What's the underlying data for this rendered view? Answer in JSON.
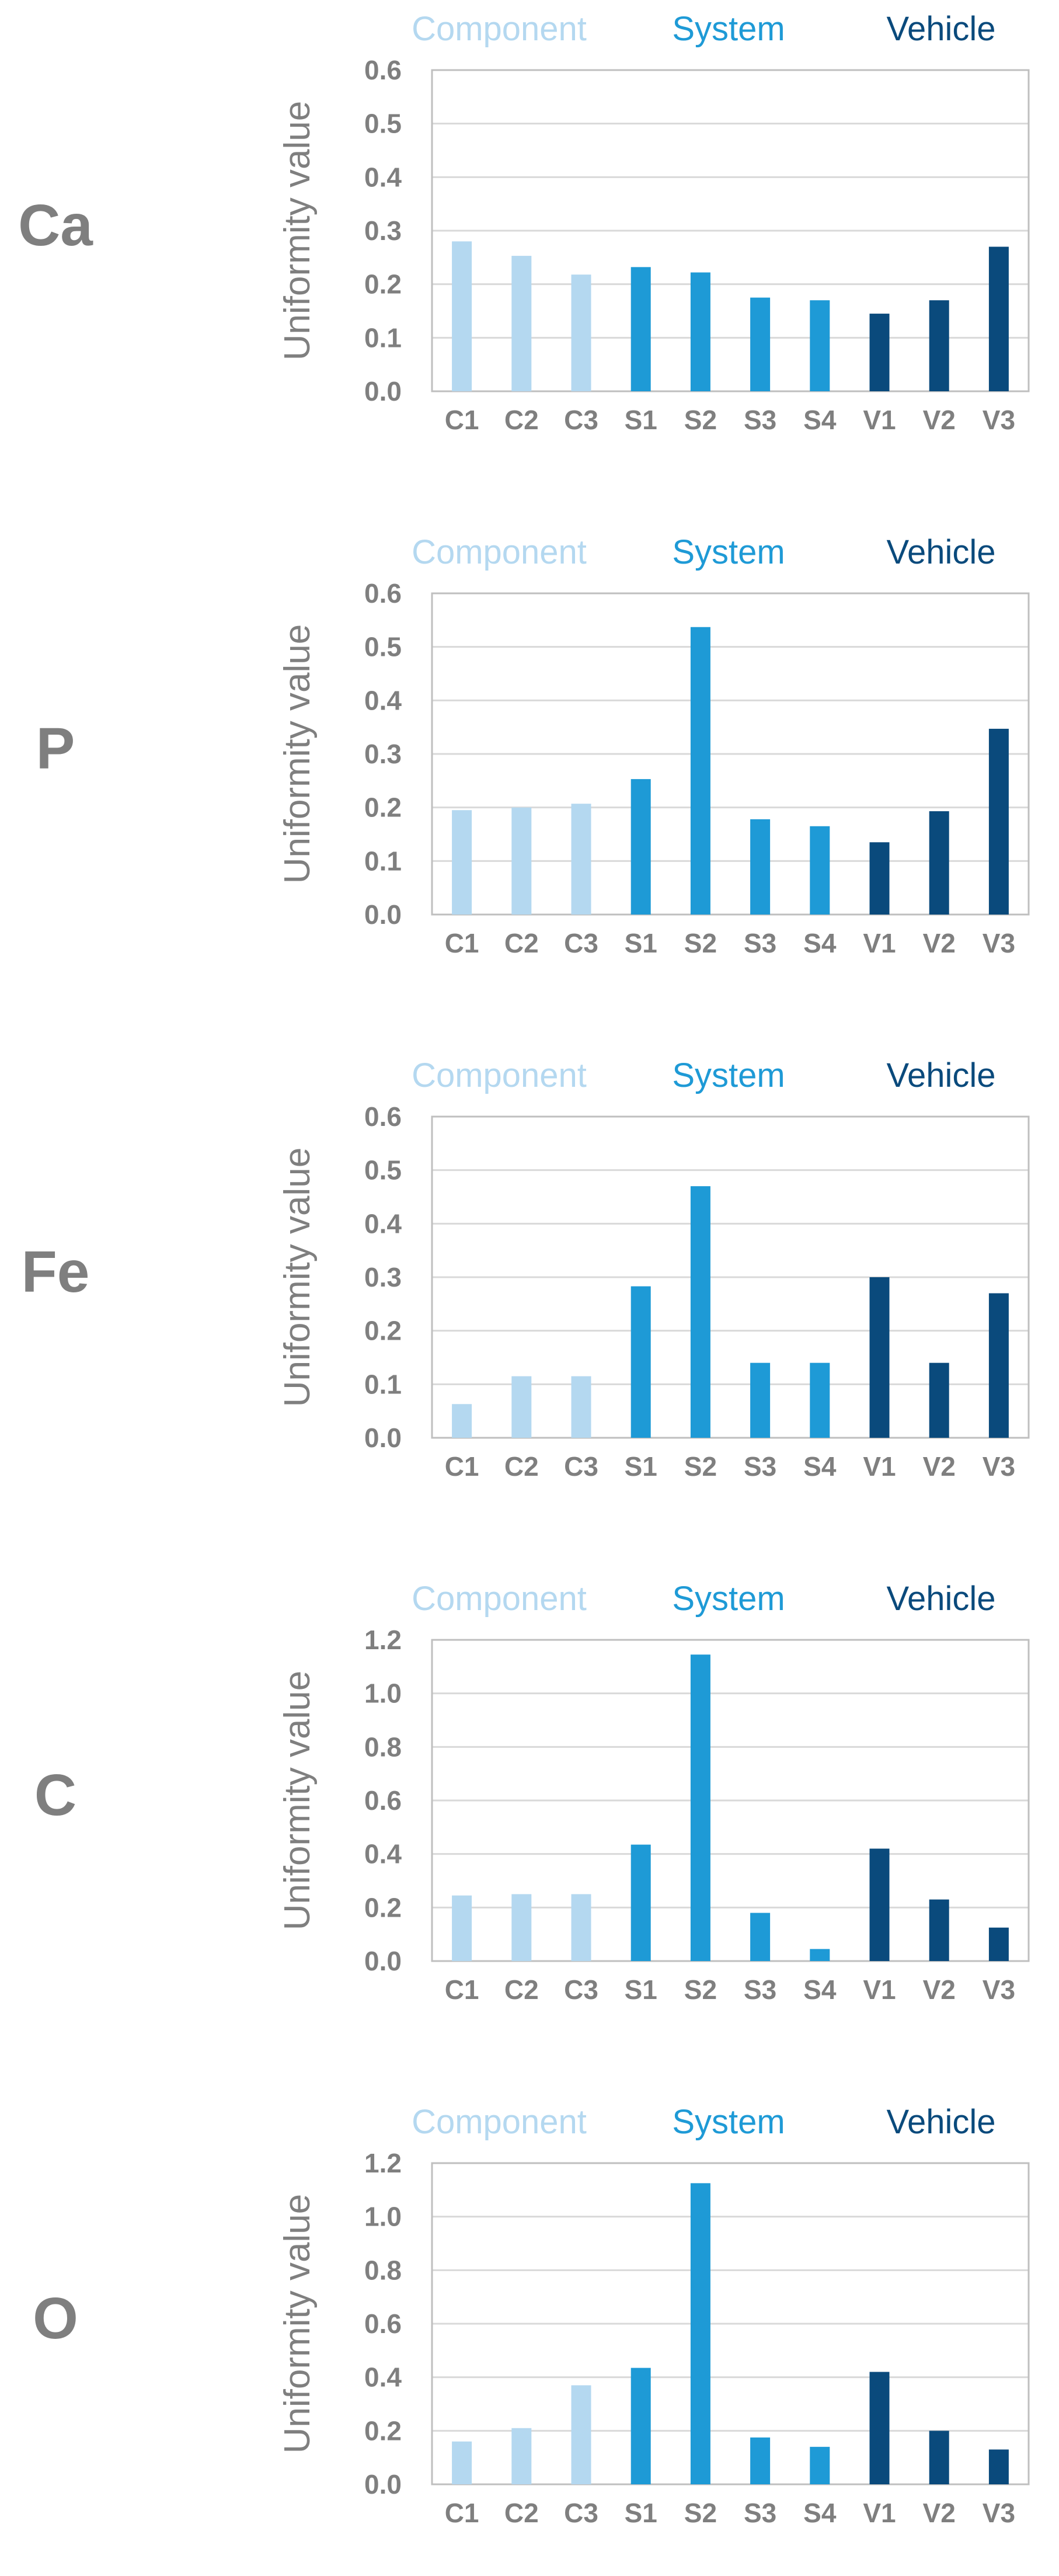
{
  "colors": {
    "component": "#b4d8f0",
    "system": "#1e9ad6",
    "vehicle": "#0a4a7c",
    "element_label": "#7f7f7f",
    "axis_text": "#7f7f7f",
    "grid": "#d9d9d9",
    "plot_border": "#bfbfbf"
  },
  "legend": [
    {
      "label": "Component",
      "group": "component"
    },
    {
      "label": "System",
      "group": "system"
    },
    {
      "label": "Vehicle",
      "group": "vehicle"
    }
  ],
  "chart_data": [
    {
      "type": "bar",
      "element": "Ca",
      "ylabel": "Uniformity value",
      "categories": [
        "C1",
        "C2",
        "C3",
        "S1",
        "S2",
        "S3",
        "S4",
        "V1",
        "V2",
        "V3"
      ],
      "groups": [
        "component",
        "component",
        "component",
        "system",
        "system",
        "system",
        "system",
        "vehicle",
        "vehicle",
        "vehicle"
      ],
      "values": [
        0.28,
        0.253,
        0.218,
        0.232,
        0.222,
        0.175,
        0.17,
        0.145,
        0.17,
        0.27
      ],
      "ylim": [
        0,
        0.6
      ],
      "yticks": [
        "0.0",
        "0.1",
        "0.2",
        "0.3",
        "0.4",
        "0.5",
        "0.6"
      ],
      "ytick_values": [
        0,
        0.1,
        0.2,
        0.3,
        0.4,
        0.5,
        0.6
      ]
    },
    {
      "type": "bar",
      "element": "P",
      "ylabel": "Uniformity value",
      "categories": [
        "C1",
        "C2",
        "C3",
        "S1",
        "S2",
        "S3",
        "S4",
        "V1",
        "V2",
        "V3"
      ],
      "groups": [
        "component",
        "component",
        "component",
        "system",
        "system",
        "system",
        "system",
        "vehicle",
        "vehicle",
        "vehicle"
      ],
      "values": [
        0.195,
        0.2,
        0.207,
        0.253,
        0.537,
        0.178,
        0.165,
        0.135,
        0.193,
        0.347
      ],
      "ylim": [
        0,
        0.6
      ],
      "yticks": [
        "0.0",
        "0.1",
        "0.2",
        "0.3",
        "0.4",
        "0.5",
        "0.6"
      ],
      "ytick_values": [
        0,
        0.1,
        0.2,
        0.3,
        0.4,
        0.5,
        0.6
      ]
    },
    {
      "type": "bar",
      "element": "Fe",
      "ylabel": "Uniformity value",
      "categories": [
        "C1",
        "C2",
        "C3",
        "S1",
        "S2",
        "S3",
        "S4",
        "V1",
        "V2",
        "V3"
      ],
      "groups": [
        "component",
        "component",
        "component",
        "system",
        "system",
        "system",
        "system",
        "vehicle",
        "vehicle",
        "vehicle"
      ],
      "values": [
        0.063,
        0.115,
        0.115,
        0.283,
        0.47,
        0.14,
        0.14,
        0.3,
        0.14,
        0.27
      ],
      "ylim": [
        0,
        0.6
      ],
      "yticks": [
        "0.0",
        "0.1",
        "0.2",
        "0.3",
        "0.4",
        "0.5",
        "0.6"
      ],
      "ytick_values": [
        0,
        0.1,
        0.2,
        0.3,
        0.4,
        0.5,
        0.6
      ]
    },
    {
      "type": "bar",
      "element": "C",
      "ylabel": "Uniformity value",
      "categories": [
        "C1",
        "C2",
        "C3",
        "S1",
        "S2",
        "S3",
        "S4",
        "V1",
        "V2",
        "V3"
      ],
      "groups": [
        "component",
        "component",
        "component",
        "system",
        "system",
        "system",
        "system",
        "vehicle",
        "vehicle",
        "vehicle"
      ],
      "values": [
        0.245,
        0.25,
        0.25,
        0.435,
        1.145,
        0.18,
        0.045,
        0.42,
        0.23,
        0.125
      ],
      "ylim": [
        0,
        1.2
      ],
      "yticks": [
        "0.0",
        "0.2",
        "0.4",
        "0.6",
        "0.8",
        "1.0",
        "1.2"
      ],
      "ytick_values": [
        0,
        0.2,
        0.4,
        0.6,
        0.8,
        1.0,
        1.2
      ]
    },
    {
      "type": "bar",
      "element": "O",
      "ylabel": "Uniformity value",
      "categories": [
        "C1",
        "C2",
        "C3",
        "S1",
        "S2",
        "S3",
        "S4",
        "V1",
        "V2",
        "V3"
      ],
      "groups": [
        "component",
        "component",
        "component",
        "system",
        "system",
        "system",
        "system",
        "vehicle",
        "vehicle",
        "vehicle"
      ],
      "values": [
        0.16,
        0.21,
        0.37,
        0.435,
        1.125,
        0.175,
        0.14,
        0.42,
        0.2,
        0.13
      ],
      "ylim": [
        0,
        1.2
      ],
      "yticks": [
        "0.0",
        "0.2",
        "0.4",
        "0.6",
        "0.8",
        "1.0",
        "1.2"
      ],
      "ytick_values": [
        0,
        0.2,
        0.4,
        0.6,
        0.8,
        1.0,
        1.2
      ]
    }
  ]
}
